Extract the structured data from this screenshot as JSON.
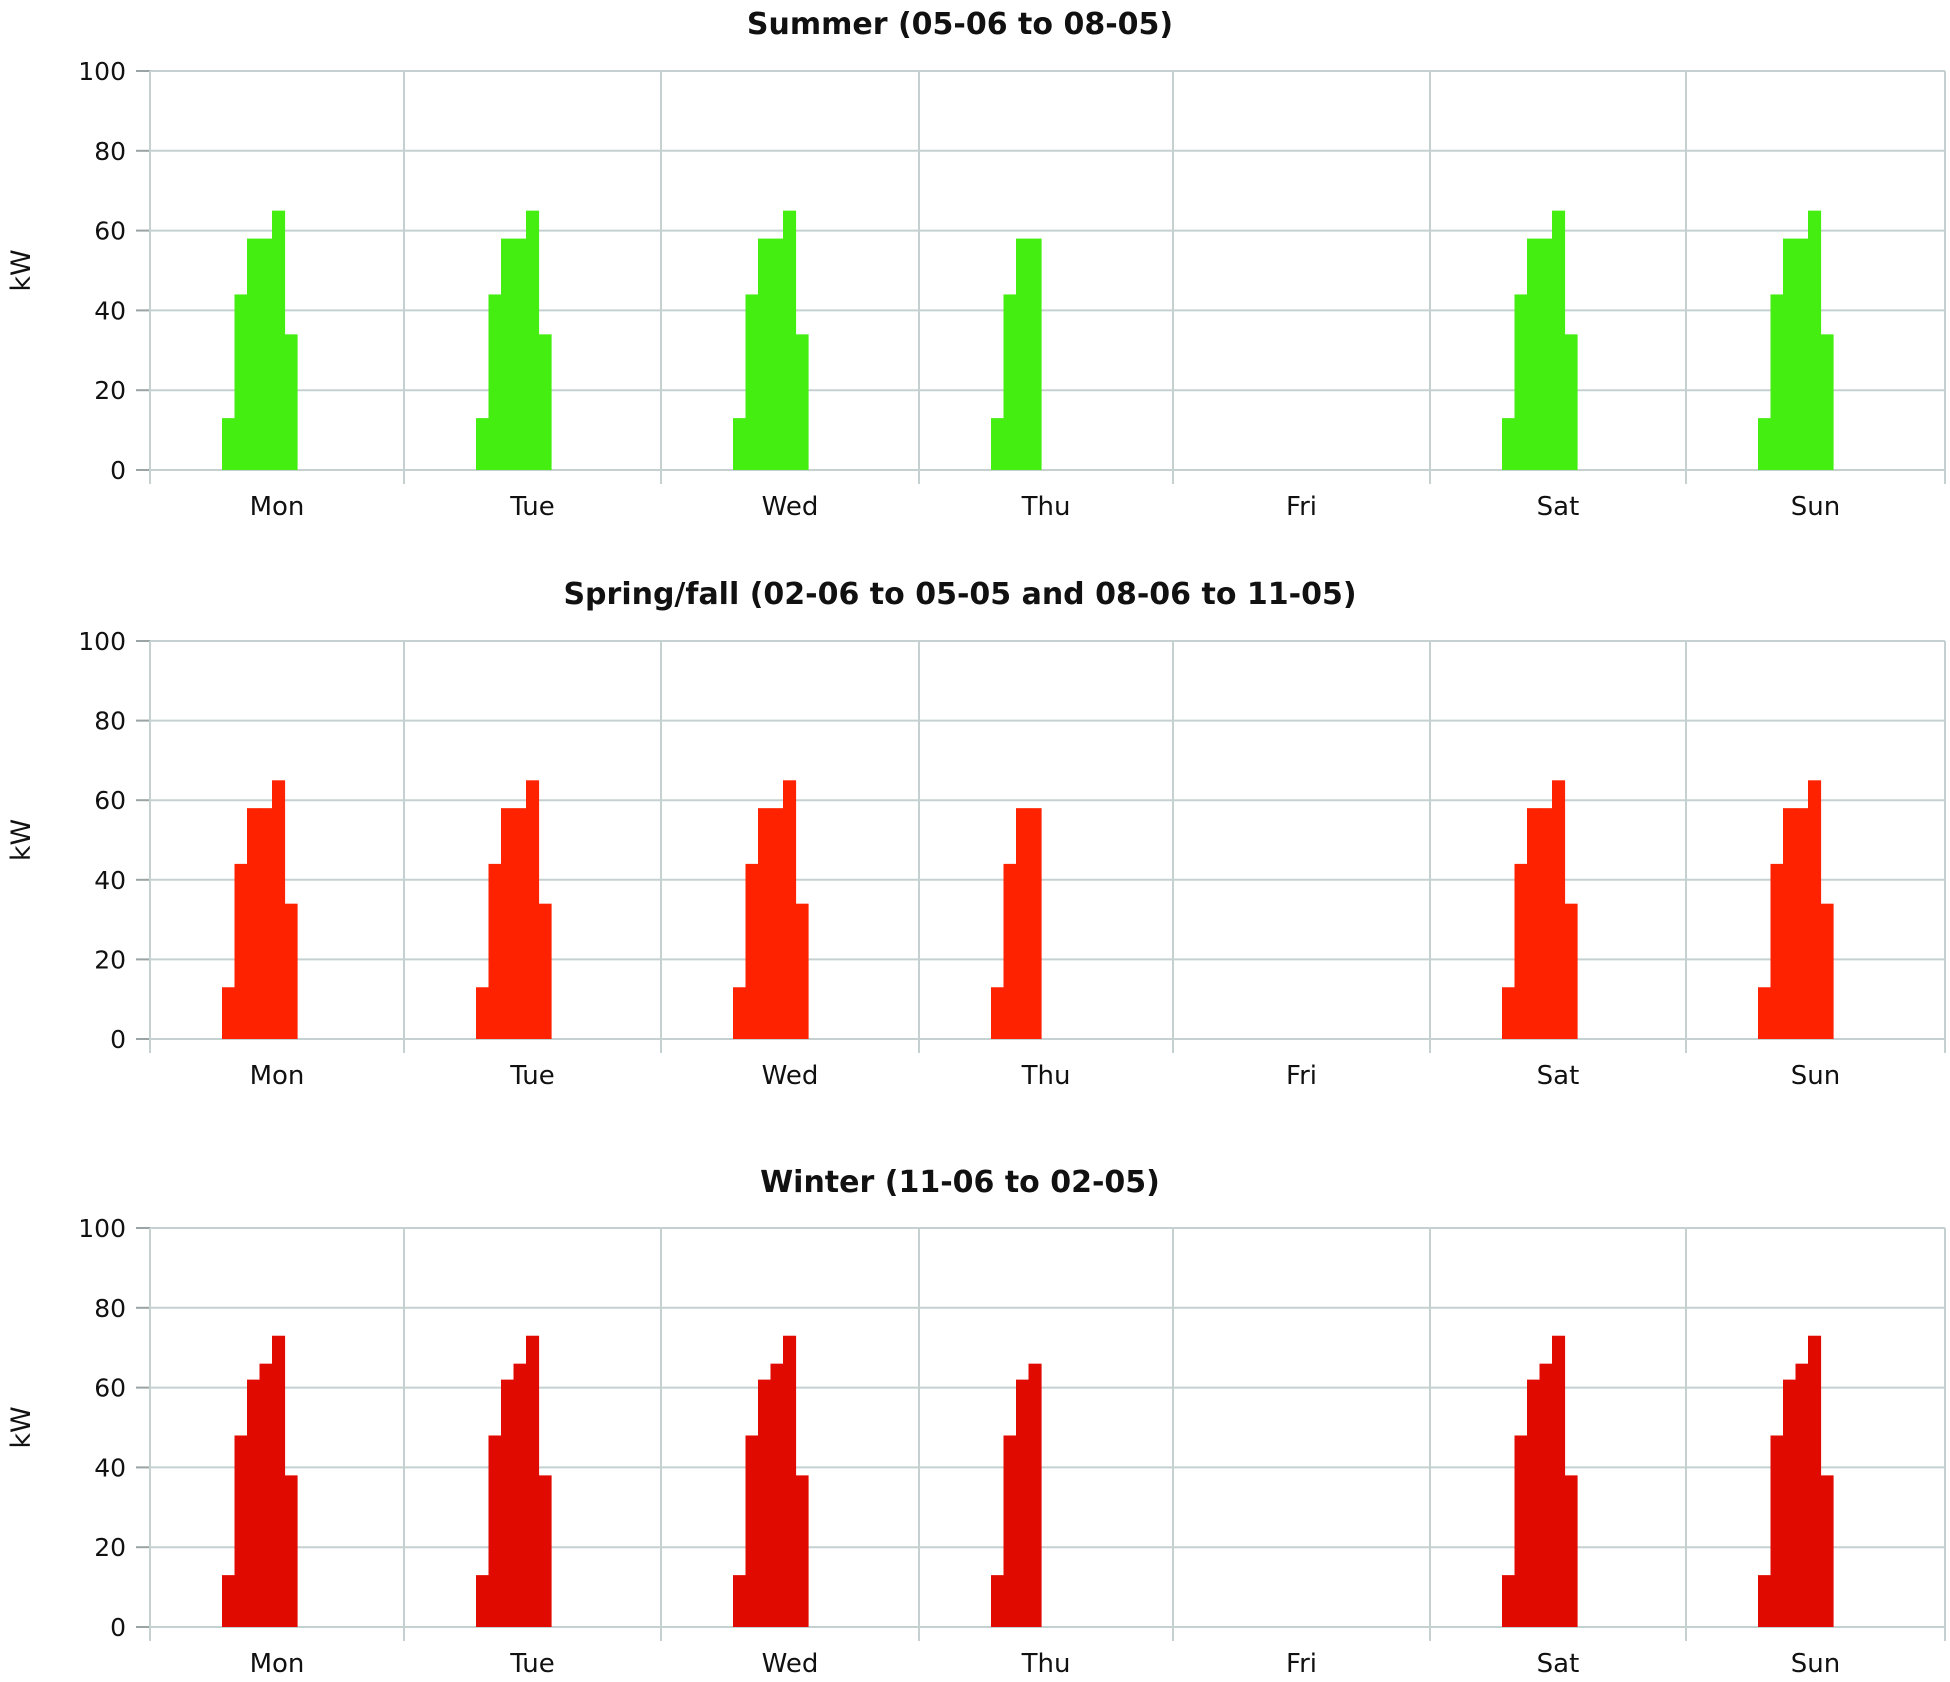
{
  "chart_data": [
    {
      "type": "area",
      "title": "Summer (05-06 to 08-05)",
      "xlabel": "",
      "ylabel": "kW",
      "ylim": [
        0,
        100
      ],
      "yticks": [
        0,
        20,
        40,
        60,
        80,
        100
      ],
      "grid": true,
      "categories": [
        "Mon",
        "Tue",
        "Wed",
        "Thu",
        "Fri",
        "Sat",
        "Sun"
      ],
      "fill_color": "#44ee11",
      "profiles": {
        "Mon": [
          13,
          44,
          58,
          58,
          65,
          34
        ],
        "Tue": [
          13,
          44,
          58,
          58,
          65,
          34
        ],
        "Wed": [
          13,
          44,
          58,
          58,
          65,
          34
        ],
        "Thu": [
          13,
          44,
          58,
          58
        ],
        "Fri": [],
        "Sat": [
          13,
          44,
          58,
          58,
          65,
          34
        ],
        "Sun": [
          13,
          44,
          58,
          58,
          65,
          34
        ]
      }
    },
    {
      "type": "area",
      "title": "Spring/fall (02-06 to 05-05 and 08-06 to 11-05)",
      "xlabel": "",
      "ylabel": "kW",
      "ylim": [
        0,
        100
      ],
      "yticks": [
        0,
        20,
        40,
        60,
        80,
        100
      ],
      "grid": true,
      "categories": [
        "Mon",
        "Tue",
        "Wed",
        "Thu",
        "Fri",
        "Sat",
        "Sun"
      ],
      "fill_color": "#ff2200",
      "profiles": {
        "Mon": [
          13,
          44,
          58,
          58,
          65,
          34
        ],
        "Tue": [
          13,
          44,
          58,
          58,
          65,
          34
        ],
        "Wed": [
          13,
          44,
          58,
          58,
          65,
          34
        ],
        "Thu": [
          13,
          44,
          58,
          58
        ],
        "Fri": [],
        "Sat": [
          13,
          44,
          58,
          58,
          65,
          34
        ],
        "Sun": [
          13,
          44,
          58,
          58,
          65,
          34
        ]
      }
    },
    {
      "type": "area",
      "title": "Winter (11-06 to 02-05)",
      "xlabel": "",
      "ylabel": "kW",
      "ylim": [
        0,
        100
      ],
      "yticks": [
        0,
        20,
        40,
        60,
        80,
        100
      ],
      "grid": true,
      "categories": [
        "Mon",
        "Tue",
        "Wed",
        "Thu",
        "Fri",
        "Sat",
        "Sun"
      ],
      "fill_color": "#e00a00",
      "profiles": {
        "Mon": [
          13,
          48,
          62,
          66,
          73,
          38
        ],
        "Tue": [
          13,
          48,
          62,
          66,
          73,
          38
        ],
        "Wed": [
          13,
          48,
          62,
          66,
          73,
          38
        ],
        "Thu": [
          13,
          48,
          62,
          66
        ],
        "Fri": [],
        "Sat": [
          13,
          48,
          62,
          66,
          73,
          38
        ],
        "Sun": [
          13,
          48,
          62,
          66,
          73,
          38
        ]
      }
    }
  ]
}
